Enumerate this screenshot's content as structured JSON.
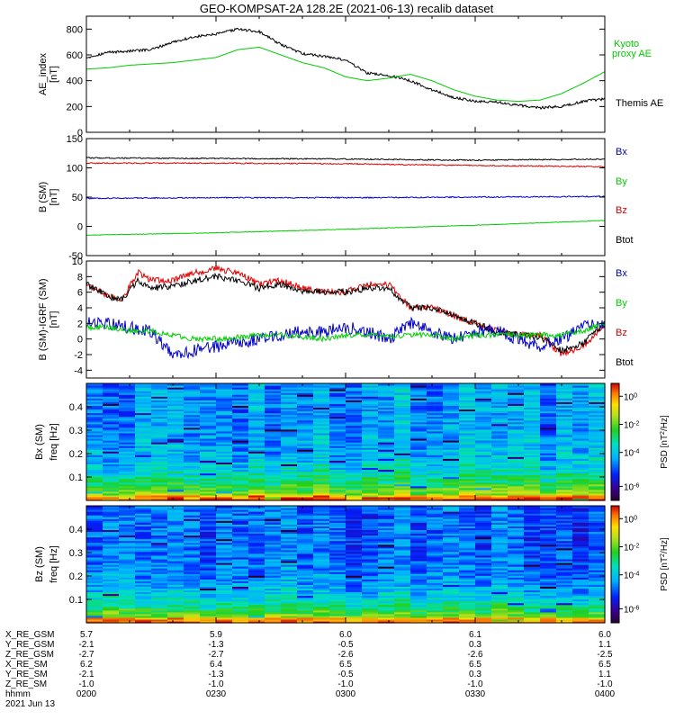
{
  "title": "GEO-KOMPSAT-2A 128.2E (2021-06-13) recalib dataset",
  "colors": {
    "black": "#000000",
    "green": "#00cc00",
    "blue": "#0000cc",
    "red": "#dd0000",
    "label_green": "#00cc00",
    "label_blue": "#0000aa",
    "label_red": "#cc0000"
  },
  "chart_data": [
    {
      "type": "line",
      "panel": "ae",
      "ylabel": "AE_index",
      "yunits": "[nT]",
      "ylim": [
        0,
        900
      ],
      "yticks": [
        "0",
        "200",
        "400",
        "600",
        "800"
      ],
      "xlim": [
        0,
        120
      ],
      "series": [
        {
          "name": "Themis AE",
          "color": "#000000",
          "x": [
            0,
            5,
            10,
            15,
            20,
            25,
            30,
            35,
            40,
            45,
            50,
            55,
            60,
            65,
            70,
            75,
            80,
            85,
            90,
            95,
            100,
            105,
            110,
            115,
            120
          ],
          "values": [
            580,
            620,
            630,
            640,
            700,
            740,
            760,
            800,
            780,
            680,
            610,
            590,
            560,
            460,
            440,
            400,
            330,
            270,
            240,
            235,
            210,
            190,
            200,
            240,
            260
          ],
          "noise": 10
        },
        {
          "name": "Kyoto proxy AE",
          "color": "#00cc00",
          "x": [
            0,
            5,
            10,
            15,
            20,
            25,
            30,
            35,
            40,
            45,
            50,
            55,
            60,
            65,
            70,
            75,
            80,
            85,
            90,
            95,
            100,
            105,
            110,
            115,
            120
          ],
          "values": [
            490,
            500,
            520,
            530,
            540,
            560,
            580,
            640,
            660,
            600,
            540,
            500,
            430,
            400,
            420,
            450,
            400,
            330,
            280,
            250,
            240,
            250,
            300,
            380,
            470
          ],
          "noise": 0
        }
      ],
      "legend": [
        "Kyoto",
        "proxy AE",
        "Themis AE"
      ]
    },
    {
      "type": "line",
      "panel": "b_sm",
      "ylabel": "B (SM)",
      "yunits": "[nT]",
      "ylim": [
        -50,
        150
      ],
      "yticks": [
        "-50",
        "0",
        "50",
        "100",
        "150"
      ],
      "xlim": [
        0,
        120
      ],
      "series": [
        {
          "name": "Btot",
          "color": "#000000",
          "x": [
            0,
            30,
            60,
            90,
            120
          ],
          "values": [
            117,
            116,
            115,
            113,
            115
          ],
          "noise": 1
        },
        {
          "name": "Bz",
          "color": "#dd0000",
          "x": [
            0,
            30,
            60,
            90,
            120
          ],
          "values": [
            108,
            108,
            107,
            104,
            102
          ],
          "noise": 1
        },
        {
          "name": "Bx",
          "color": "#0000cc",
          "x": [
            0,
            30,
            60,
            90,
            120
          ],
          "values": [
            48,
            49,
            49,
            50,
            51
          ],
          "noise": 1
        },
        {
          "name": "By",
          "color": "#00cc00",
          "x": [
            0,
            30,
            60,
            90,
            120
          ],
          "values": [
            -15,
            -11,
            -5,
            2,
            10
          ],
          "noise": 0.5
        }
      ],
      "legend": [
        "Bx",
        "By",
        "Bz",
        "Btot"
      ]
    },
    {
      "type": "line",
      "panel": "b_igrf",
      "ylabel": "B (SM)-IGRF (SM)",
      "yunits": "[nT]",
      "ylim": [
        -5,
        10
      ],
      "yticks": [
        "-4",
        "-2",
        "0",
        "2",
        "4",
        "6",
        "8",
        "10"
      ],
      "xlim": [
        0,
        120
      ],
      "series": [
        {
          "name": "Bz",
          "color": "#dd0000",
          "x": [
            0,
            5,
            8,
            12,
            15,
            20,
            25,
            30,
            35,
            40,
            45,
            50,
            55,
            60,
            65,
            70,
            75,
            80,
            85,
            90,
            95,
            100,
            105,
            110,
            115,
            120
          ],
          "values": [
            7,
            5.5,
            5,
            8.5,
            7.5,
            7.5,
            8.5,
            9,
            8.5,
            7,
            7.5,
            6.5,
            6,
            6,
            7,
            7,
            4,
            4,
            3,
            2,
            1,
            0.5,
            0.5,
            -2,
            -1,
            2
          ],
          "noise": 0.4
        },
        {
          "name": "Btot",
          "color": "#000000",
          "x": [
            0,
            5,
            8,
            12,
            15,
            20,
            25,
            30,
            35,
            40,
            45,
            50,
            55,
            60,
            65,
            70,
            75,
            80,
            85,
            90,
            95,
            100,
            105,
            110,
            115,
            120
          ],
          "values": [
            7,
            5.5,
            5,
            7.5,
            6.5,
            6.8,
            7.5,
            8,
            7.5,
            6.5,
            7,
            6.2,
            6,
            6,
            6.5,
            6.5,
            4,
            4,
            3,
            2,
            1,
            0.5,
            0.3,
            -1.5,
            -0.5,
            2
          ],
          "noise": 0.4
        },
        {
          "name": "Bx",
          "color": "#0000cc",
          "x": [
            0,
            5,
            10,
            15,
            18,
            20,
            25,
            30,
            35,
            40,
            45,
            50,
            55,
            60,
            65,
            70,
            75,
            80,
            85,
            90,
            95,
            100,
            105,
            110,
            115,
            120
          ],
          "values": [
            2,
            2,
            1.5,
            1,
            -1,
            -2,
            -1.5,
            -1,
            -0.5,
            0,
            0.5,
            1,
            1,
            1.5,
            1,
            0,
            2,
            1,
            0,
            1,
            1,
            0,
            -1,
            0,
            1.5,
            2
          ],
          "noise": 0.8
        },
        {
          "name": "By",
          "color": "#00cc00",
          "x": [
            0,
            5,
            10,
            15,
            20,
            25,
            30,
            35,
            40,
            45,
            50,
            55,
            60,
            65,
            70,
            75,
            80,
            85,
            90,
            95,
            100,
            105,
            110,
            115,
            120
          ],
          "values": [
            1.5,
            1.5,
            1,
            1,
            0.5,
            0,
            0,
            0.2,
            0.5,
            0.5,
            0.3,
            0,
            0.5,
            0.5,
            0.3,
            0.5,
            0.5,
            0,
            0.5,
            0.5,
            0.5,
            0.5,
            0.5,
            1,
            2
          ],
          "noise": 0.35
        }
      ],
      "legend": [
        "Bx",
        "By",
        "Bz",
        "Btot"
      ]
    },
    {
      "type": "heatmap",
      "panel": "spec_bx",
      "ylabel": "Bx (SM)",
      "ylabel2": "freq [Hz]",
      "ylim": [
        0,
        0.5
      ],
      "yticks": [
        "0.1",
        "0.2",
        "0.3",
        "0.4"
      ],
      "colorbar_label": "PSD [nT^2/Hz]",
      "colorbar_ticks": [
        "10^0",
        "10^-2",
        "10^-4",
        "10^-6"
      ],
      "psd_log_range": [
        -7,
        1.5
      ],
      "psd_low_freq_log": 0,
      "psd_high_freq_log": -4,
      "seed": 7
    },
    {
      "type": "heatmap",
      "panel": "spec_bz",
      "ylabel": "Bz (SM)",
      "ylabel2": "freq [Hz]",
      "ylim": [
        0,
        0.5
      ],
      "yticks": [
        "0.1",
        "0.2",
        "0.3",
        "0.4"
      ],
      "colorbar_label": "PSD [nT^2/Hz]",
      "colorbar_ticks": [
        "10^0",
        "10^-2",
        "10^-4",
        "10^-6"
      ],
      "psd_log_range": [
        -7,
        1.5
      ],
      "psd_low_freq_log": -0.2,
      "psd_high_freq_log": -4.6,
      "seed": 19
    }
  ],
  "x_axis": {
    "row_labels": [
      "X_RE_GSM",
      "Y_RE_GSM",
      "Z_RE_GSM",
      "X_RE_SM",
      "Y_RE_SM",
      "Z_RE_SM",
      "hhmm",
      "2021 Jun 13"
    ],
    "columns": [
      [
        "5.7",
        "-2.1",
        "-2.7",
        "6.2",
        "-2.1",
        "-1.0",
        "0200"
      ],
      [
        "5.9",
        "-1.3",
        "-2.7",
        "6.4",
        "-1.3",
        "-1.0",
        "0230"
      ],
      [
        "6.0",
        "-0.5",
        "-2.6",
        "6.5",
        "-0.5",
        "-1.0",
        "0300"
      ],
      [
        "6.1",
        "0.3",
        "-2.6",
        "6.5",
        "0.3",
        "-1.0",
        "0330"
      ],
      [
        "6.0",
        "1.1",
        "-2.5",
        "6.5",
        "1.1",
        "-1.0",
        "0400"
      ]
    ]
  }
}
